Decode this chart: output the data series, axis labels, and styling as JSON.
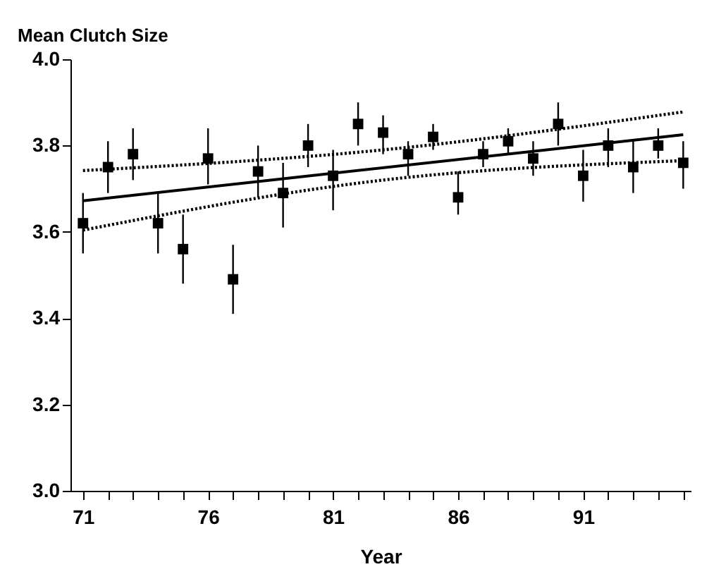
{
  "chart_data": {
    "type": "scatter",
    "ylabel": "Mean Clutch Size",
    "xlabel": "Year",
    "xlim": [
      70.5,
      95.3
    ],
    "xticks": [
      71,
      {
        "value": 72,
        "label": null
      },
      {
        "value": 73,
        "label": null
      },
      {
        "value": 74,
        "label": null
      },
      {
        "value": 75,
        "label": null
      },
      76,
      {
        "value": 77,
        "label": null
      },
      {
        "value": 78,
        "label": null
      },
      {
        "value": 79,
        "label": null
      },
      {
        "value": 80,
        "label": null
      },
      81,
      {
        "value": 82,
        "label": null
      },
      {
        "value": 83,
        "label": null
      },
      {
        "value": 84,
        "label": null
      },
      {
        "value": 85,
        "label": null
      },
      86,
      {
        "value": 87,
        "label": null
      },
      {
        "value": 88,
        "label": null
      },
      {
        "value": 89,
        "label": null
      },
      {
        "value": 90,
        "label": null
      },
      91,
      {
        "value": 92,
        "label": null
      },
      {
        "value": 93,
        "label": null
      },
      {
        "value": 94,
        "label": null
      },
      {
        "value": 95,
        "label": null
      }
    ],
    "ylim": [
      3.0,
      4.0
    ],
    "yticks": [
      {
        "value": 3.0,
        "label": "3.0"
      },
      3.2,
      3.4,
      3.6,
      3.8,
      {
        "value": 4.0,
        "label": "4.0"
      }
    ],
    "grid": false,
    "series": [
      {
        "color": "#000000",
        "marker": "square",
        "x": [
          71,
          72,
          73,
          74,
          75,
          76,
          77,
          78,
          79,
          80,
          81,
          82,
          83,
          84,
          85,
          86,
          87,
          88,
          89,
          90,
          91,
          92,
          93,
          94,
          95
        ],
        "values": [
          3.62,
          3.75,
          3.78,
          3.62,
          3.56,
          3.77,
          3.49,
          3.74,
          3.69,
          3.8,
          3.73,
          3.85,
          3.83,
          3.78,
          3.82,
          3.68,
          3.78,
          3.81,
          3.77,
          3.85,
          3.73,
          3.8,
          3.75,
          3.8,
          3.76
        ],
        "errors": [
          [
            3.55,
            3.69
          ],
          [
            3.69,
            3.81
          ],
          [
            3.72,
            3.84
          ],
          [
            3.55,
            3.69
          ],
          [
            3.48,
            3.64
          ],
          [
            3.71,
            3.84
          ],
          [
            3.41,
            3.57
          ],
          [
            3.68,
            3.8
          ],
          [
            3.61,
            3.76
          ],
          [
            3.75,
            3.85
          ],
          [
            3.65,
            3.79
          ],
          [
            3.8,
            3.9
          ],
          [
            3.78,
            3.87
          ],
          [
            3.73,
            3.81
          ],
          [
            3.79,
            3.85
          ],
          [
            3.64,
            3.74
          ],
          [
            3.75,
            3.81
          ],
          [
            3.78,
            3.84
          ],
          [
            3.73,
            3.81
          ],
          [
            3.8,
            3.9
          ],
          [
            3.67,
            3.79
          ],
          [
            3.75,
            3.84
          ],
          [
            3.69,
            3.81
          ],
          [
            3.77,
            3.84
          ],
          [
            3.7,
            3.81
          ]
        ]
      },
      {
        "type": "line",
        "color": "#000000",
        "line_style": "solid",
        "x": [
          71,
          95
        ],
        "values": [
          3.672,
          3.825
        ]
      },
      {
        "type": "line",
        "color": "#000000",
        "line_style": "dotted",
        "x": [
          71,
          83,
          95
        ],
        "values": [
          3.742,
          3.79,
          3.878
        ]
      },
      {
        "type": "line",
        "color": "#000000",
        "line_style": "dotted",
        "x": [
          71,
          83,
          95
        ],
        "values": [
          3.604,
          3.72,
          3.765
        ]
      }
    ]
  }
}
